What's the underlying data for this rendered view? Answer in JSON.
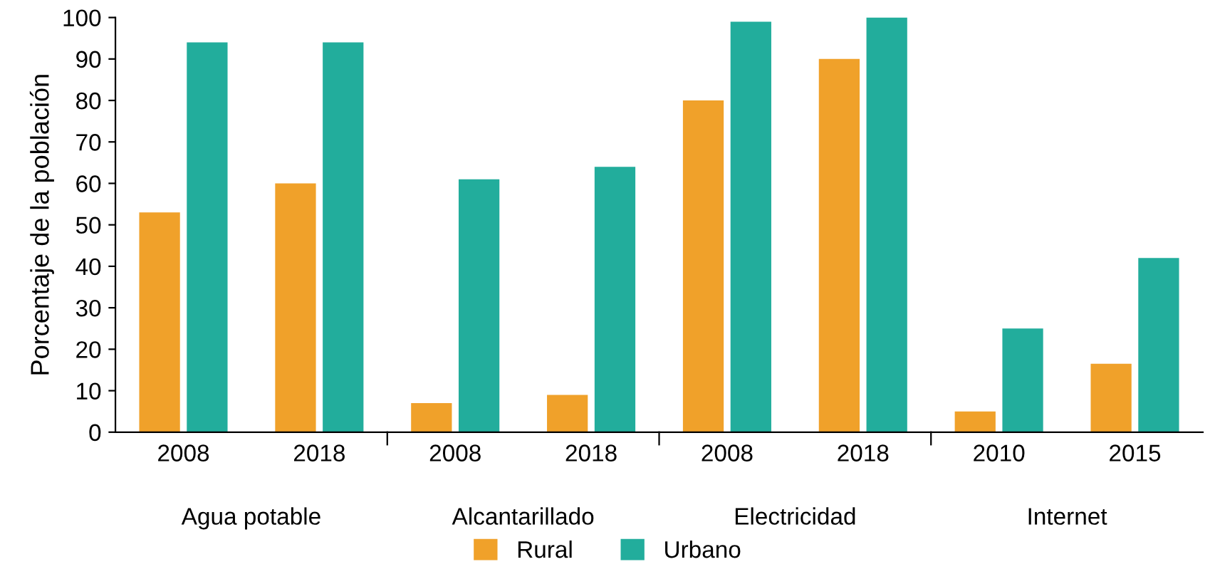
{
  "chart_data": {
    "type": "bar",
    "ylabel": "Porcentaje de la población",
    "categories": [
      "2008",
      "2018",
      "2008",
      "2018",
      "2008",
      "2018",
      "2010",
      "2015"
    ],
    "annotations": [
      "Agua potable",
      "Alcantarillado",
      "Electricidad",
      "Internet"
    ],
    "series": [
      {
        "name": "Rural",
        "color": "#f0a12a",
        "values": [
          53,
          60,
          7,
          9,
          80,
          90,
          5,
          16.5
        ]
      },
      {
        "name": "Urbano",
        "color": "#22ad9c",
        "values": [
          94,
          94,
          61,
          64,
          99,
          100,
          25,
          42
        ]
      }
    ],
    "ylim": [
      0,
      100
    ],
    "yticks": [
      0,
      10,
      20,
      30,
      40,
      50,
      60,
      70,
      80,
      90,
      100
    ],
    "grid": false,
    "legend": "bottom"
  }
}
